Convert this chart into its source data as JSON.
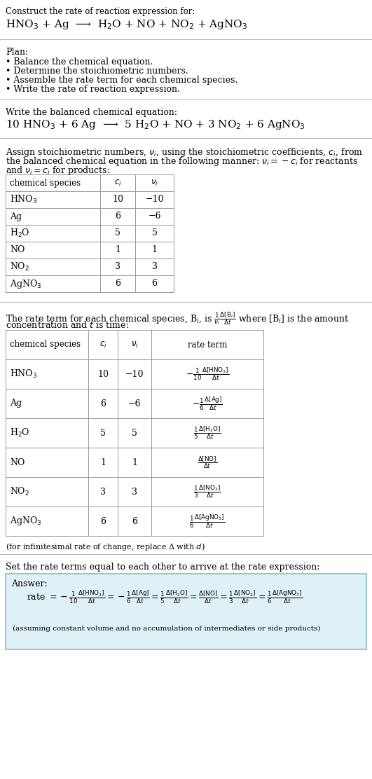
{
  "title_line1": "Construct the rate of reaction expression for:",
  "title_line2": "HNO$_3$ + Ag  ⟶  H$_2$O + NO + NO$_2$ + AgNO$_3$",
  "plan_header": "Plan:",
  "plan_items": [
    "• Balance the chemical equation.",
    "• Determine the stoichiometric numbers.",
    "• Assemble the rate term for each chemical species.",
    "• Write the rate of reaction expression."
  ],
  "balanced_header": "Write the balanced chemical equation:",
  "balanced_eq": "10 HNO$_3$ + 6 Ag  ⟶  5 H$_2$O + NO + 3 NO$_2$ + 6 AgNO$_3$",
  "assign_text1": "Assign stoichiometric numbers, $\\nu_i$, using the stoichiometric coefficients, $c_i$, from",
  "assign_text2": "the balanced chemical equation in the following manner: $\\nu_i = -c_i$ for reactants",
  "assign_text3": "and $\\nu_i = c_i$ for products:",
  "table1_headers": [
    "chemical species",
    "$c_i$",
    "$\\nu_i$"
  ],
  "table1_rows": [
    [
      "HNO$_3$",
      "10",
      "−10"
    ],
    [
      "Ag",
      "6",
      "−6"
    ],
    [
      "H$_2$O",
      "5",
      "5"
    ],
    [
      "NO",
      "1",
      "1"
    ],
    [
      "NO$_2$",
      "3",
      "3"
    ],
    [
      "AgNO$_3$",
      "6",
      "6"
    ]
  ],
  "rate_text1": "The rate term for each chemical species, B$_i$, is $\\frac{1}{\\nu_i}\\frac{\\Delta[\\mathrm{B}_i]}{\\Delta t}$ where [B$_i$] is the amount",
  "rate_text2": "concentration and $t$ is time:",
  "table2_headers": [
    "chemical species",
    "$c_i$",
    "$\\nu_i$",
    "rate term"
  ],
  "table2_rows": [
    [
      "HNO$_3$",
      "10",
      "−10",
      "$-\\frac{1}{10}\\frac{\\Delta[\\mathrm{HNO_3}]}{\\Delta t}$"
    ],
    [
      "Ag",
      "6",
      "−6",
      "$-\\frac{1}{6}\\frac{\\Delta[\\mathrm{Ag}]}{\\Delta t}$"
    ],
    [
      "H$_2$O",
      "5",
      "5",
      "$\\frac{1}{5}\\frac{\\Delta[\\mathrm{H_2O}]}{\\Delta t}$"
    ],
    [
      "NO",
      "1",
      "1",
      "$\\frac{\\Delta[\\mathrm{NO}]}{\\Delta t}$"
    ],
    [
      "NO$_2$",
      "3",
      "3",
      "$\\frac{1}{3}\\frac{\\Delta[\\mathrm{NO_2}]}{\\Delta t}$"
    ],
    [
      "AgNO$_3$",
      "6",
      "6",
      "$\\frac{1}{6}\\frac{\\Delta[\\mathrm{AgNO_3}]}{\\Delta t}$"
    ]
  ],
  "infinitesimal_note": "(for infinitesimal rate of change, replace Δ with $d$)",
  "set_rate_text": "Set the rate terms equal to each other to arrive at the rate expression:",
  "answer_label": "Answer:",
  "answer_box_color": "#dff0f7",
  "answer_box_border": "#88bbcc",
  "answer_note": "(assuming constant volume and no accumulation of intermediates or side products)",
  "bg_color": "#ffffff",
  "text_color": "#000000"
}
